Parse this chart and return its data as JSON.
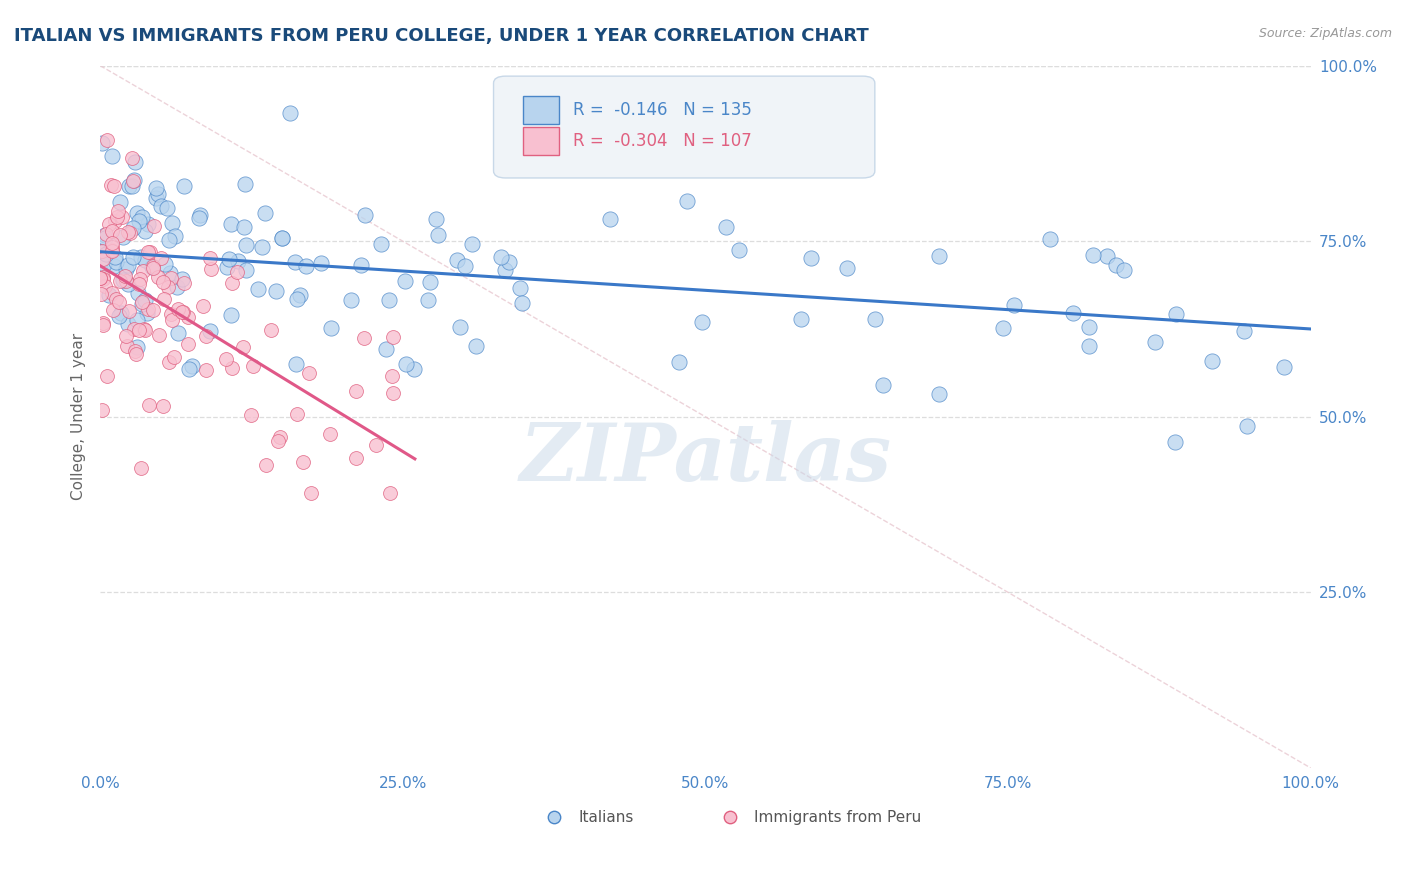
{
  "title": "ITALIAN VS IMMIGRANTS FROM PERU COLLEGE, UNDER 1 YEAR CORRELATION CHART",
  "source_text": "Source: ZipAtlas.com",
  "ylabel": "College, Under 1 year",
  "xlim": [
    0.0,
    1.0
  ],
  "ylim": [
    0.0,
    1.0
  ],
  "xtick_labels": [
    "0.0%",
    "25.0%",
    "50.0%",
    "75.0%",
    "100.0%"
  ],
  "xtick_vals": [
    0.0,
    0.25,
    0.5,
    0.75,
    1.0
  ],
  "ytick_labels": [
    "25.0%",
    "50.0%",
    "75.0%",
    "100.0%"
  ],
  "ytick_vals": [
    0.25,
    0.5,
    0.75,
    1.0
  ],
  "blue_color": "#b8d4ee",
  "blue_edge": "#4a86c8",
  "pink_color": "#f8c0d0",
  "pink_edge": "#e06080",
  "trend_blue_color": "#3a78c8",
  "trend_pink_color": "#e05888",
  "trend_diag_color": "#e8c8d0",
  "watermark": "ZIPatlas",
  "watermark_color": "#c8d8e8",
  "bg_color": "#ffffff",
  "title_color": "#1a4a7a",
  "ylabel_color": "#666666",
  "tick_color": "#4a86c8",
  "grid_color": "#dddddd",
  "r_blue": -0.146,
  "n_blue": 135,
  "r_pink": -0.304,
  "n_pink": 107,
  "legend_box_color": "#f0f4f8",
  "legend_border_color": "#c8d8e8",
  "blue_trend_x0": 0.0,
  "blue_trend_y0": 0.735,
  "blue_trend_x1": 1.0,
  "blue_trend_y1": 0.625,
  "pink_trend_x0": 0.0,
  "pink_trend_y0": 0.715,
  "pink_trend_x1": 0.26,
  "pink_trend_y1": 0.44,
  "seed_blue": 7,
  "seed_pink": 13
}
